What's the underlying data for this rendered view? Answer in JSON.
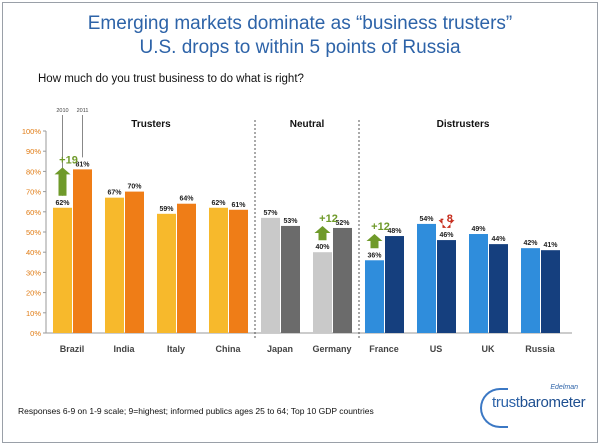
{
  "title_line1": "Emerging markets dominate as “business trusters”",
  "title_line2": "U.S. drops to within 5 points of Russia",
  "question": "How much do you trust business to do what is right?",
  "footnote": "Responses 6-9 on 1-9 scale; 9=highest; informed publics ages 25 to 64; Top 10 GDP countries",
  "logo": {
    "brand": "Edelman",
    "trust": "trust",
    "barometer": "barometer"
  },
  "colors": {
    "truster_2010": "#f7b92c",
    "truster_2011": "#ef7d17",
    "neutral_2010": "#c9c9c9",
    "neutral_2011": "#6b6b6b",
    "distruster_2010": "#2f8ddc",
    "distruster_2011": "#153f7e",
    "up_arrow": "#6f9a2a",
    "down_arrow": "#c62a1a",
    "title": "#2d63a8"
  },
  "chart_data": {
    "type": "bar",
    "title": "How much do you trust business to do what is right?",
    "categories": [
      "Brazil",
      "India",
      "Italy",
      "China",
      "Japan",
      "Germany",
      "France",
      "US",
      "UK",
      "Russia"
    ],
    "series": [
      {
        "name": "2010",
        "values": [
          62,
          67,
          59,
          62,
          57,
          40,
          36,
          54,
          49,
          42
        ]
      },
      {
        "name": "2011",
        "values": [
          81,
          70,
          64,
          61,
          53,
          52,
          48,
          46,
          44,
          41
        ]
      }
    ],
    "value_labels_2010": [
      "62%",
      "67%",
      "59%",
      "62%",
      "57%",
      "40%",
      "36%",
      "54%",
      "49%",
      "42%"
    ],
    "value_labels_2011": [
      "81%",
      "70%",
      "64%",
      "61%",
      "53%",
      "52%",
      "48%",
      "46%",
      "44%",
      "41%"
    ],
    "series_year_labels": [
      "2010",
      "2011"
    ],
    "group_of_category": [
      0,
      0,
      0,
      0,
      1,
      1,
      2,
      2,
      2,
      2
    ],
    "groups": [
      "Trusters",
      "Neutral",
      "Distrusters"
    ],
    "yticks": [
      "0%",
      "10%",
      "20%",
      "30%",
      "40%",
      "50%",
      "60%",
      "70%",
      "80%",
      "90%",
      "100%"
    ],
    "ylim": [
      0,
      100
    ],
    "annotations": [
      {
        "category": "Brazil",
        "text": "+19",
        "direction": "up"
      },
      {
        "category": "Germany",
        "text": "+12",
        "direction": "up"
      },
      {
        "category": "France",
        "text": "+12",
        "direction": "up"
      },
      {
        "category": "US",
        "text": "- 8",
        "direction": "down"
      }
    ]
  }
}
